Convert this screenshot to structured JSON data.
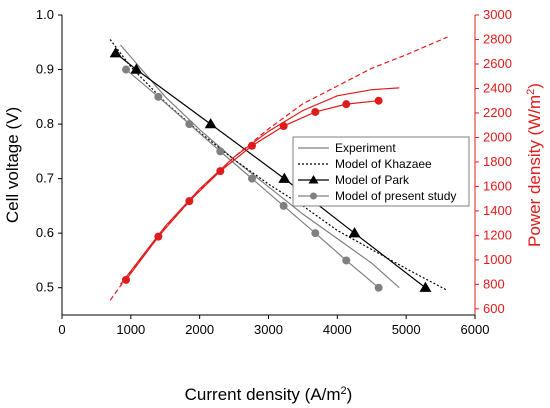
{
  "chart_data": {
    "type": "line",
    "x_axis": {
      "label": "Current density (A/m",
      "label_sup": "2",
      "label_end": ")",
      "range": [
        0,
        6000
      ],
      "ticks": [
        0,
        1000,
        2000,
        3000,
        4000,
        5000,
        6000
      ]
    },
    "y_axis_left": {
      "label": "Cell voltage (V)",
      "range": [
        0.45,
        1.0
      ],
      "ticks": [
        0.5,
        0.6,
        0.7,
        0.8,
        0.9,
        1.0
      ],
      "tick_labels": [
        "0.5",
        "0.6",
        "0.7",
        "0.8",
        "0.9",
        "1.0"
      ]
    },
    "y_axis_right": {
      "label": "Power density (W/m",
      "label_sup": "2",
      "label_end": ")",
      "range": [
        550,
        3000
      ],
      "ticks": [
        600,
        800,
        1000,
        1200,
        1400,
        1600,
        1800,
        2000,
        2200,
        2400,
        2600,
        2800,
        3000
      ],
      "color": "#e01b1b"
    },
    "grid": false,
    "legend": {
      "placement": "center-right",
      "entries": [
        {
          "label": "Experiment",
          "style": "solid"
        },
        {
          "label": "Model of Khazaee",
          "style": "dotted"
        },
        {
          "label": "Model of Park",
          "style": "triangle-line"
        },
        {
          "label": "Model of present study",
          "style": "circle-line"
        }
      ]
    },
    "series": [
      {
        "name": "Experiment",
        "axis": "left",
        "color": "#808080",
        "style": "solid",
        "x": [
          850,
          1500,
          2000,
          2500,
          3000,
          3500,
          4000,
          4500,
          4900
        ],
        "y": [
          0.945,
          0.85,
          0.79,
          0.735,
          0.685,
          0.635,
          0.59,
          0.545,
          0.5
        ]
      },
      {
        "name": "Model of Khazaee",
        "axis": "left",
        "color": "#000000",
        "style": "dotted",
        "x": [
          700,
          1000,
          1500,
          2000,
          2500,
          3000,
          3500,
          4000,
          4500,
          5000,
          5600
        ],
        "y": [
          0.955,
          0.905,
          0.84,
          0.785,
          0.735,
          0.69,
          0.65,
          0.605,
          0.57,
          0.535,
          0.495
        ]
      },
      {
        "name": "Model of Park",
        "axis": "left",
        "color": "#000000",
        "style": "triangle-line",
        "x": [
          780,
          1080,
          2160,
          3230,
          4250,
          5280
        ],
        "y": [
          0.93,
          0.9,
          0.8,
          0.7,
          0.6,
          0.5
        ]
      },
      {
        "name": "Model of present study",
        "axis": "left",
        "color": "#808080",
        "style": "circle-line",
        "x": [
          930,
          1400,
          1850,
          2300,
          2760,
          3220,
          3680,
          4130,
          4600
        ],
        "y": [
          0.9,
          0.85,
          0.8,
          0.75,
          0.7,
          0.65,
          0.6,
          0.55,
          0.5
        ]
      },
      {
        "name": "Experiment (power)",
        "axis": "right",
        "color": "#e01b1b",
        "style": "solid",
        "x": [
          850,
          1500,
          2000,
          2500,
          3000,
          3500,
          4000,
          4500,
          4900
        ],
        "y": [
          800,
          1275,
          1580,
          1840,
          2050,
          2220,
          2340,
          2390,
          2405
        ]
      },
      {
        "name": "Model of Khazaee (power)",
        "axis": "right",
        "color": "#e01b1b",
        "style": "dashed",
        "x": [
          700,
          1000,
          1500,
          2000,
          2500,
          3000,
          3500,
          4000,
          4500,
          5000,
          5600
        ],
        "y": [
          670,
          905,
          1260,
          1570,
          1840,
          2070,
          2275,
          2420,
          2565,
          2675,
          2820
        ]
      },
      {
        "name": "Model of present study (power)",
        "axis": "right",
        "color": "#e01b1b",
        "style": "circle-line",
        "x": [
          930,
          1400,
          1850,
          2300,
          2760,
          3220,
          3680,
          4130,
          4600
        ],
        "y": [
          837,
          1190,
          1480,
          1725,
          1932,
          2093,
          2208,
          2272,
          2300
        ]
      }
    ]
  }
}
